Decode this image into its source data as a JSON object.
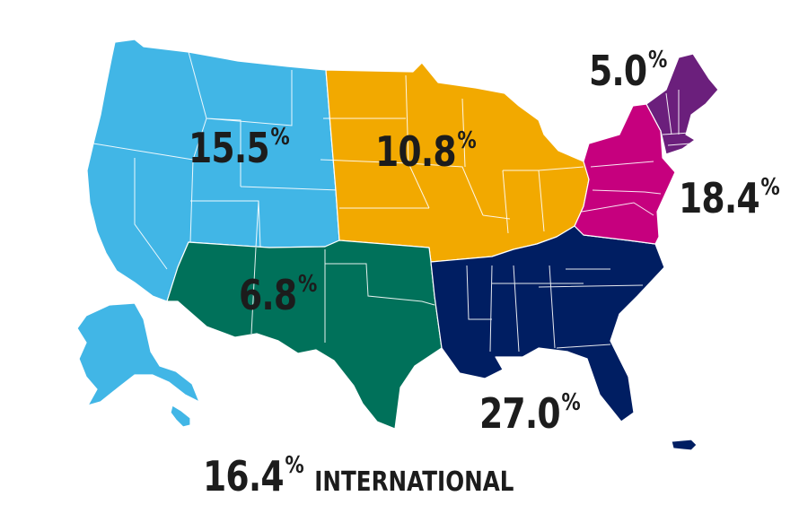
{
  "colors": {
    "west": "#41b6e6",
    "midwest": "#f2a900",
    "southwest": "#00715a",
    "southeast": "#001e62",
    "mid_atlantic": "#c6007e",
    "new_england": "#6b1f7c",
    "label_text": "#1c1c1c"
  },
  "regions": [
    {
      "id": "west",
      "value": "15.5",
      "unit": "%"
    },
    {
      "id": "midwest",
      "value": "10.8",
      "unit": "%"
    },
    {
      "id": "new_england",
      "value": "5.0",
      "unit": "%"
    },
    {
      "id": "mid_atlantic",
      "value": "18.4",
      "unit": "%"
    },
    {
      "id": "southwest",
      "value": "6.8",
      "unit": "%"
    },
    {
      "id": "southeast",
      "value": "27.0",
      "unit": "%"
    }
  ],
  "international": {
    "value": "16.4",
    "unit": "%",
    "label": "INTERNATIONAL"
  }
}
